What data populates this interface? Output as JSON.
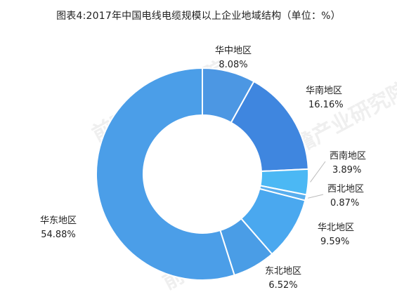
{
  "title": "图表4:2017年中国电线电缆规模以上企业地域结构（单位：%）",
  "watermark": "前瞻产业研究院",
  "chart_data": {
    "type": "pie",
    "title": "图表4:2017年中国电线电缆规模以上企业地域结构（单位：%）",
    "donut": true,
    "labels_outside": true,
    "slices": [
      {
        "name": "华中地区",
        "value": 8.08,
        "label": "8.08%",
        "color": "#4c97e3"
      },
      {
        "name": "华南地区",
        "value": 16.16,
        "label": "16.16%",
        "color": "#3f86df"
      },
      {
        "name": "西南地区",
        "value": 3.89,
        "label": "3.89%",
        "color": "#4bb8f4"
      },
      {
        "name": "西北地区",
        "value": 0.87,
        "label": "0.87%",
        "color": "#59aeee"
      },
      {
        "name": "华北地区",
        "value": 9.59,
        "label": "9.59%",
        "color": "#4aa8ef"
      },
      {
        "name": "东北地区",
        "value": 6.52,
        "label": "6.52%",
        "color": "#4a9de6"
      },
      {
        "name": "华东地区",
        "value": 54.88,
        "label": "54.88%",
        "color": "#4b9ee8"
      }
    ]
  }
}
